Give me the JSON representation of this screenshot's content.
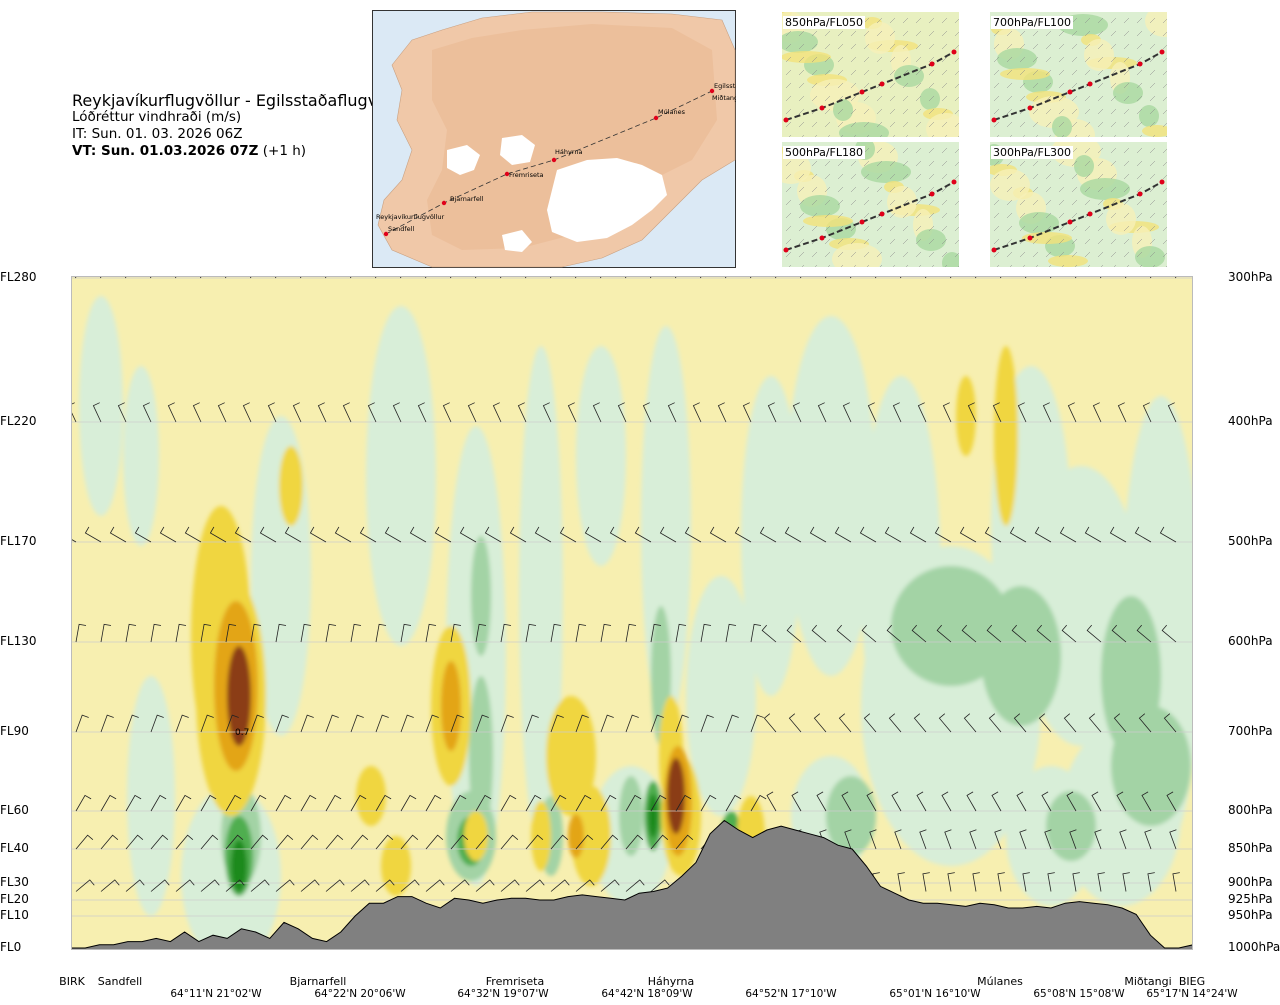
{
  "header": {
    "route": "Reykjavíkurflugvöllur - Egilsstaðaflugvöllur",
    "quantity": "Lóðréttur vindhraði (m/s)",
    "issue_time": "IT: Sun. 01. 03. 2026 06Z",
    "valid_time_bold": "VT: Sun. 01.03.2026 07Z",
    "valid_time_offset": "(+1 h)"
  },
  "map": {
    "waypoints": [
      "Reykjavíkurflugvöllur",
      "Sandfell",
      "Bjarnarfell",
      "Fremriseta",
      "Háhyrna",
      "Múlanes",
      "Egilsstaðir",
      "Miðtangi"
    ],
    "route_color": "#333333",
    "point_color": "#e0001a"
  },
  "panels": [
    {
      "title": "850hPa/FL050"
    },
    {
      "title": "700hPa/FL100"
    },
    {
      "title": "500hPa/FL180"
    },
    {
      "title": "300hPa/FL300"
    }
  ],
  "chart_data": {
    "type": "heatmap",
    "description_fields": "vertical cross-section of vertical wind speed along route",
    "y_levels_fl": [
      {
        "fl": "FL280",
        "hpa": "300hPa"
      },
      {
        "fl": "FL220",
        "hpa": "400hPa"
      },
      {
        "fl": "FL170",
        "hpa": "500hPa"
      },
      {
        "fl": "FL130",
        "hpa": "600hPa"
      },
      {
        "fl": "FL90",
        "hpa": "700hPa"
      },
      {
        "fl": "FL60",
        "hpa": "800hPa"
      },
      {
        "fl": "FL40",
        "hpa": "850hPa"
      },
      {
        "fl": "FL30",
        "hpa": "900hPa"
      },
      {
        "fl": "FL20",
        "hpa": "925hPa"
      },
      {
        "fl": "FL10",
        "hpa": "950hPa"
      },
      {
        "fl": "FL0",
        "hpa": "1000hPa"
      }
    ],
    "x_categories": [
      "BIRK",
      "Sandfell",
      "Bjarnarfell",
      "Fremriseta",
      "Háhyrna",
      "Múlanes",
      "Miðtangi",
      "BIEG"
    ],
    "x_coords": [
      "64°11'N 21°02'W",
      "64°22'N 20°06'W",
      "64°32'N 19°07'W",
      "64°42'N 18°09'W",
      "64°52'N 17°10'W",
      "65°01'N 16°10'W",
      "65°08'N 15°08'W",
      "65°17'N 14°24'W"
    ],
    "annotations": [
      "0.7"
    ],
    "colors": {
      "down_weak": "#f5eda8",
      "down_mod": "#f0d640",
      "down_strong": "#e3a514",
      "down_max": "#8b3d12",
      "up_weak": "#d8eed8",
      "up_mod": "#a3d3a5",
      "up_strong": "#4fae4f",
      "up_max": "#1a8a1a",
      "terrain": "#808080"
    },
    "terrain_profile_fl": [
      0,
      0,
      1,
      1,
      2,
      2,
      3,
      2,
      5,
      2,
      4,
      3,
      6,
      5,
      3,
      8,
      6,
      3,
      2,
      5,
      10,
      18,
      18,
      22,
      22,
      18,
      15,
      21,
      20,
      18,
      20,
      21,
      21,
      20,
      20,
      22,
      23,
      22,
      21,
      20,
      24,
      25,
      27,
      32,
      36,
      48,
      55,
      50,
      46,
      50,
      52,
      50,
      48,
      46,
      42,
      40,
      35,
      28,
      24,
      20,
      18,
      18,
      17,
      16,
      18,
      17,
      15,
      15,
      16,
      15,
      18,
      19,
      18,
      17,
      15,
      11,
      4,
      0,
      0,
      1
    ]
  }
}
